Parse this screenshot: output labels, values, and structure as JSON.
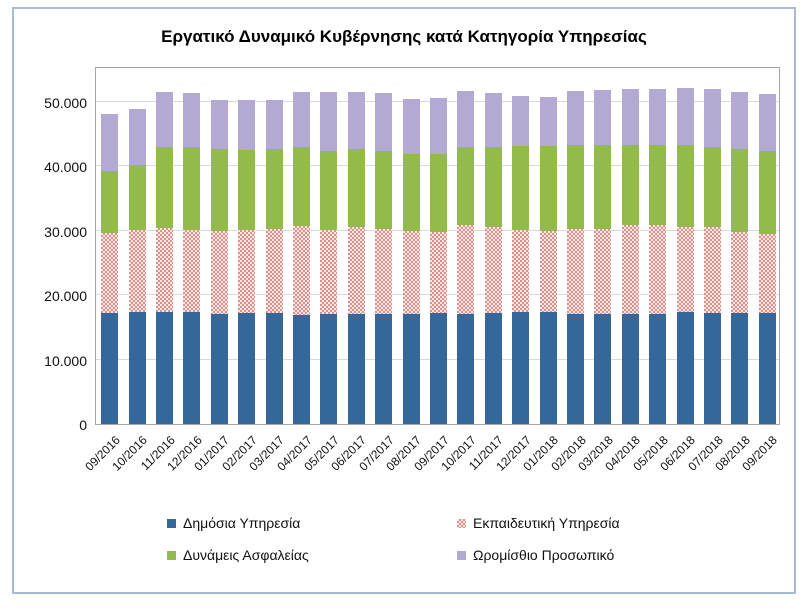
{
  "title": "Εργατικό Δυναμικό Κυβέρνησης κατά Κατηγορία Υπηρεσίας",
  "y_axis": {
    "tick_labels_top_to_bottom": [
      "50.000",
      "40.000",
      "30.000",
      "20.000",
      "10.000",
      "0"
    ],
    "tick_interval": 10000,
    "min": 0
  },
  "legend": {
    "position": "bottom",
    "items": [
      {
        "label": "Δημόσια Υπηρεσία",
        "swatch": "blue",
        "color": "#35689a"
      },
      {
        "label": "Εκπαιδευτική Υπηρεσία",
        "swatch": "pink",
        "color": "#db918e"
      },
      {
        "label": "Δυνάμεις Ασφαλείας",
        "swatch": "green",
        "color": "#92bb4c"
      },
      {
        "label": "Ωρομίσθιο Προσωπικό",
        "swatch": "purple",
        "color": "#b4a9d2"
      }
    ]
  },
  "chart_data": {
    "type": "bar",
    "stacked": true,
    "grid": "horizontal",
    "ylim": [
      0,
      55500
    ],
    "title": "Εργατικό Δυναμικό Κυβέρνησης κατά Κατηγορία Υπηρεσίας",
    "xlabel": "",
    "ylabel": "",
    "categories": [
      "09/2016",
      "10/2016",
      "11/2016",
      "12/2016",
      "01/2017",
      "02/2017",
      "03/2017",
      "04/2017",
      "05/2017",
      "06/2017",
      "07/2017",
      "08/2017",
      "09/2017",
      "10/2017",
      "11/2017",
      "12/2017",
      "01/2018",
      "02/2018",
      "03/2018",
      "04/2018",
      "05/2018",
      "06/2018",
      "07/2018",
      "08/2018",
      "09/2018"
    ],
    "series": [
      {
        "name": "Δημόσια Υπηρεσία",
        "color": "#35689a",
        "pattern": "solid",
        "values": [
          17200,
          17400,
          17400,
          17300,
          17100,
          17200,
          17200,
          16900,
          17000,
          17100,
          17100,
          17100,
          17200,
          17100,
          17200,
          17400,
          17300,
          17100,
          17100,
          17000,
          17000,
          17300,
          17200,
          17200,
          17200
        ]
      },
      {
        "name": "Εκπαιδευτική Υπηρεσία",
        "color": "#db918e",
        "pattern": "dotted",
        "values": [
          12400,
          12700,
          13000,
          12800,
          12900,
          12900,
          13100,
          13800,
          13100,
          13400,
          13200,
          12800,
          12500,
          13800,
          13300,
          12700,
          12700,
          13100,
          13200,
          13900,
          13800,
          13200,
          13400,
          12600,
          12300
        ]
      },
      {
        "name": "Δυνάμεις Ασφαλείας",
        "color": "#92bb4c",
        "pattern": "solid",
        "values": [
          9700,
          10100,
          12600,
          12900,
          12700,
          12400,
          12400,
          12200,
          12300,
          12100,
          12100,
          11900,
          12200,
          12100,
          12400,
          13000,
          13100,
          13000,
          13000,
          12400,
          12500,
          12800,
          12400,
          12900,
          12900
        ]
      },
      {
        "name": "Ωρομίσθιο Προσωπικό",
        "color": "#b4a9d2",
        "pattern": "solid",
        "values": [
          8700,
          8700,
          8500,
          8400,
          7500,
          7700,
          7500,
          8600,
          9100,
          8900,
          8900,
          8600,
          8700,
          8700,
          8500,
          7800,
          7600,
          8400,
          8500,
          8700,
          8700,
          8800,
          9000,
          8800,
          8800
        ]
      }
    ]
  }
}
